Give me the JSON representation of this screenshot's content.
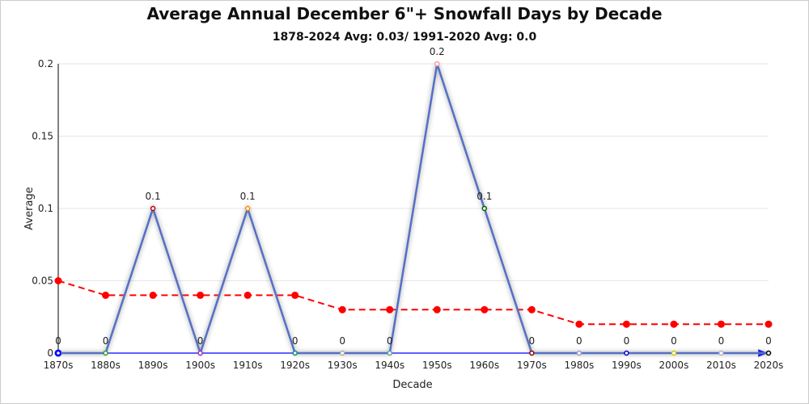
{
  "chart_data": {
    "type": "line",
    "title": "Average Annual December 6\"+ Snowfall Days by Decade",
    "subtitle": "1878-2024 Avg: 0.03/ 1991-2020 Avg: 0.0",
    "xlabel": "Decade",
    "ylabel": "Average",
    "ylim": [
      0,
      0.2
    ],
    "yticks": [
      "0",
      "0.05",
      "0.1",
      "0.15",
      "0.2"
    ],
    "grid": true,
    "categories": [
      "1870s",
      "1880s",
      "1890s",
      "1900s",
      "1910s",
      "1920s",
      "1930s",
      "1940s",
      "1950s",
      "1960s",
      "1970s",
      "1980s",
      "1990s",
      "2000s",
      "2010s",
      "2020s"
    ],
    "series": [
      {
        "values": [
          0,
          0,
          0.1,
          0,
          0.1,
          0,
          0,
          0,
          0.2,
          0.1,
          0,
          0,
          0,
          0,
          0,
          0
        ],
        "color": "#5470c6",
        "data_labels": true,
        "marker_colors": [
          "#0000ff",
          "#2ca02c",
          "#c00000",
          "#9932cc",
          "#ff8c00",
          "#008b8b",
          "#aaaaaa",
          "#5f9ea0",
          "#ff9999",
          "#006400",
          "#8b0000",
          "#9999cc",
          "#0000cd",
          "#cccc00",
          "#b0b0d0",
          "#000000"
        ]
      },
      {
        "values": [
          0.05,
          0.04,
          0.04,
          0.04,
          0.04,
          0.04,
          0.03,
          0.03,
          0.03,
          0.03,
          0.03,
          0.02,
          0.02,
          0.02,
          0.02,
          0.02
        ],
        "color": "#ff0000",
        "style": "dashed"
      },
      {
        "values": [
          0,
          0,
          0,
          0,
          0,
          0,
          0,
          0,
          0,
          0,
          0,
          0,
          0,
          0,
          0,
          0
        ],
        "color": "#0000ff",
        "style": "trend-arrow"
      }
    ]
  }
}
